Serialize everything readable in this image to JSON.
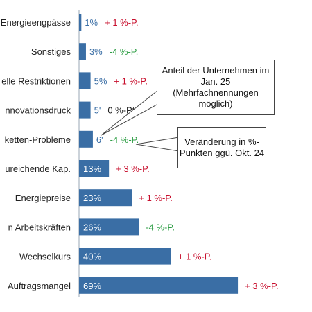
{
  "colors": {
    "bar": "#3a6ea5",
    "bar_label_light": "#ffffff",
    "bar_label_dark": "#3a6ea5",
    "positive_change": "#c8102e",
    "negative_change": "#2e9e45",
    "neutral_change": "#222222"
  },
  "callouts": {
    "share_label": "Anteil der Unternehmen im Jan. 25 (Mehrfachnennungen möglich)",
    "change_label": "Veränderung in %-Punkten ggü. Okt. 24"
  },
  "chart_data": {
    "type": "bar",
    "orientation": "horizontal",
    "xlim": [
      0,
      100
    ],
    "categories": [
      "Energieengpässe",
      "Sonstiges",
      "elle Restriktionen",
      "nnovationsdruck",
      "ketten-Probleme",
      "ureichende Kap.",
      "Energiepreise",
      "n Arbeitskräften",
      "Wechselkurs",
      "Auftragsmangel"
    ],
    "values": [
      1,
      3,
      5,
      5,
      6,
      13,
      23,
      26,
      40,
      69
    ],
    "value_labels": [
      "1%",
      "3%",
      "5%",
      "5'",
      "6'",
      "13%",
      "23%",
      "26%",
      "40%",
      "69%"
    ],
    "changes": [
      "+ 1 %-P.",
      "-4 %-P.",
      "+ 1 %-P.",
      "0 %-Pt.",
      "-4 %-P.",
      "+ 3 %-P.",
      "+ 1 %-P.",
      "-4 %-P.",
      "+ 1 %-P.",
      "+ 3 %-P."
    ],
    "change_sign": [
      "pos",
      "neg",
      "pos",
      "zero",
      "neg",
      "pos",
      "pos",
      "neg",
      "pos",
      "pos"
    ],
    "grid": false,
    "legend": "none"
  }
}
